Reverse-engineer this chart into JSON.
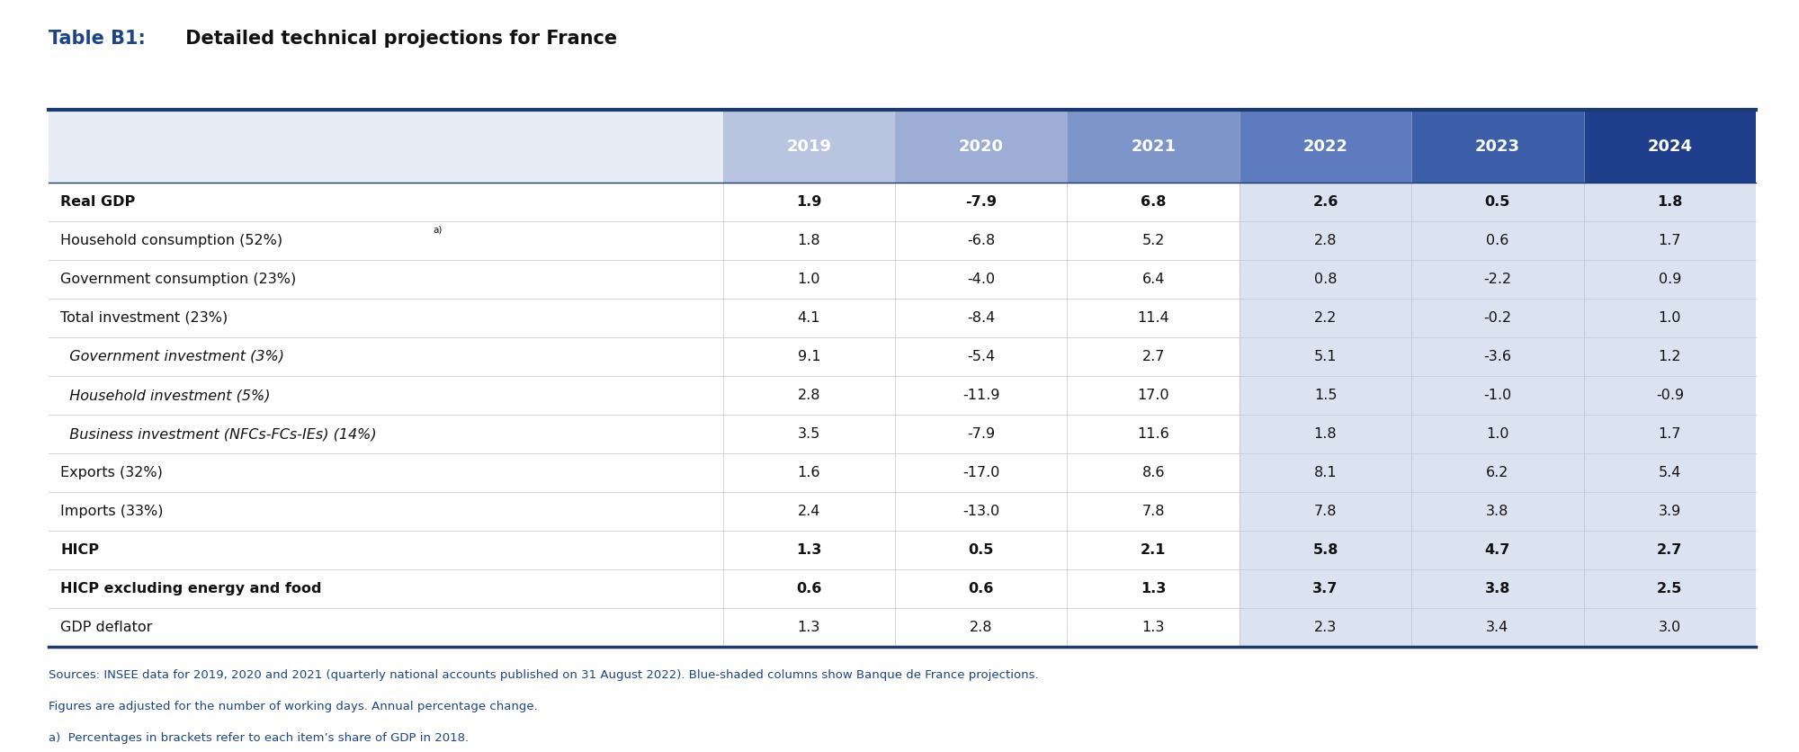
{
  "title_prefix": "Table B1:",
  "title_suffix": " Detailed technical projections for France",
  "columns": [
    "2019",
    "2020",
    "2021",
    "2022",
    "2023",
    "2024"
  ],
  "rows": [
    {
      "label": "Real GDP",
      "bold": true,
      "italic": false,
      "indent": false,
      "sup": false,
      "values": [
        "1.9",
        "-7.9",
        "6.8",
        "2.6",
        "0.5",
        "1.8"
      ]
    },
    {
      "label": "Household consumption (52%)",
      "bold": false,
      "italic": false,
      "indent": false,
      "sup": true,
      "values": [
        "1.8",
        "-6.8",
        "5.2",
        "2.8",
        "0.6",
        "1.7"
      ]
    },
    {
      "label": "Government consumption (23%)",
      "bold": false,
      "italic": false,
      "indent": false,
      "sup": false,
      "values": [
        "1.0",
        "-4.0",
        "6.4",
        "0.8",
        "-2.2",
        "0.9"
      ]
    },
    {
      "label": "Total investment (23%)",
      "bold": false,
      "italic": false,
      "indent": false,
      "sup": false,
      "values": [
        "4.1",
        "-8.4",
        "11.4",
        "2.2",
        "-0.2",
        "1.0"
      ]
    },
    {
      "label": "  Government investment (3%)",
      "bold": false,
      "italic": true,
      "indent": true,
      "sup": false,
      "values": [
        "9.1",
        "-5.4",
        "2.7",
        "5.1",
        "-3.6",
        "1.2"
      ]
    },
    {
      "label": "  Household investment (5%)",
      "bold": false,
      "italic": true,
      "indent": true,
      "sup": false,
      "values": [
        "2.8",
        "-11.9",
        "17.0",
        "1.5",
        "-1.0",
        "-0.9"
      ]
    },
    {
      "label": "  Business investment (NFCs-FCs-IEs) (14%)",
      "bold": false,
      "italic": true,
      "indent": true,
      "sup": false,
      "values": [
        "3.5",
        "-7.9",
        "11.6",
        "1.8",
        "1.0",
        "1.7"
      ]
    },
    {
      "label": "Exports (32%)",
      "bold": false,
      "italic": false,
      "indent": false,
      "sup": false,
      "values": [
        "1.6",
        "-17.0",
        "8.6",
        "8.1",
        "6.2",
        "5.4"
      ]
    },
    {
      "label": "Imports (33%)",
      "bold": false,
      "italic": false,
      "indent": false,
      "sup": false,
      "values": [
        "2.4",
        "-13.0",
        "7.8",
        "7.8",
        "3.8",
        "3.9"
      ]
    },
    {
      "label": "HICP",
      "bold": true,
      "italic": false,
      "indent": false,
      "sup": false,
      "values": [
        "1.3",
        "0.5",
        "2.1",
        "5.8",
        "4.7",
        "2.7"
      ]
    },
    {
      "label": "HICP excluding energy and food",
      "bold": true,
      "italic": false,
      "indent": false,
      "sup": false,
      "values": [
        "0.6",
        "0.6",
        "1.3",
        "3.7",
        "3.8",
        "2.5"
      ]
    },
    {
      "label": "GDP deflator",
      "bold": false,
      "italic": false,
      "indent": false,
      "sup": false,
      "values": [
        "1.3",
        "2.8",
        "1.3",
        "2.3",
        "3.4",
        "3.0"
      ]
    }
  ],
  "footnotes": [
    "Sources: INSEE data for 2019, 2020 and 2021 (quarterly national accounts published on 31 August 2022). Blue-shaded columns show Banque de France projections.",
    "Figures are adjusted for the number of working days. Annual percentage change.",
    "a)  Percentages in brackets refer to each item’s share of GDP in 2018."
  ],
  "header_colors": [
    "#b8c4e0",
    "#9dadd6",
    "#7e95ca",
    "#5e7bbf",
    "#3d5ea8",
    "#1f3e8c"
  ],
  "label_header_color": "#e8ecf5",
  "projection_col_bg": "#dce3f0",
  "header_text_color": "#ffffff",
  "row_text_color": "#111111",
  "title_blue": "#1c4587",
  "title_black": "#111111",
  "border_dark": "#1c3a6e",
  "footnote_color": "#1c4587",
  "bg_color": "#ffffff",
  "row_divider_color": "#c8cdd8",
  "sup_label": "a)"
}
